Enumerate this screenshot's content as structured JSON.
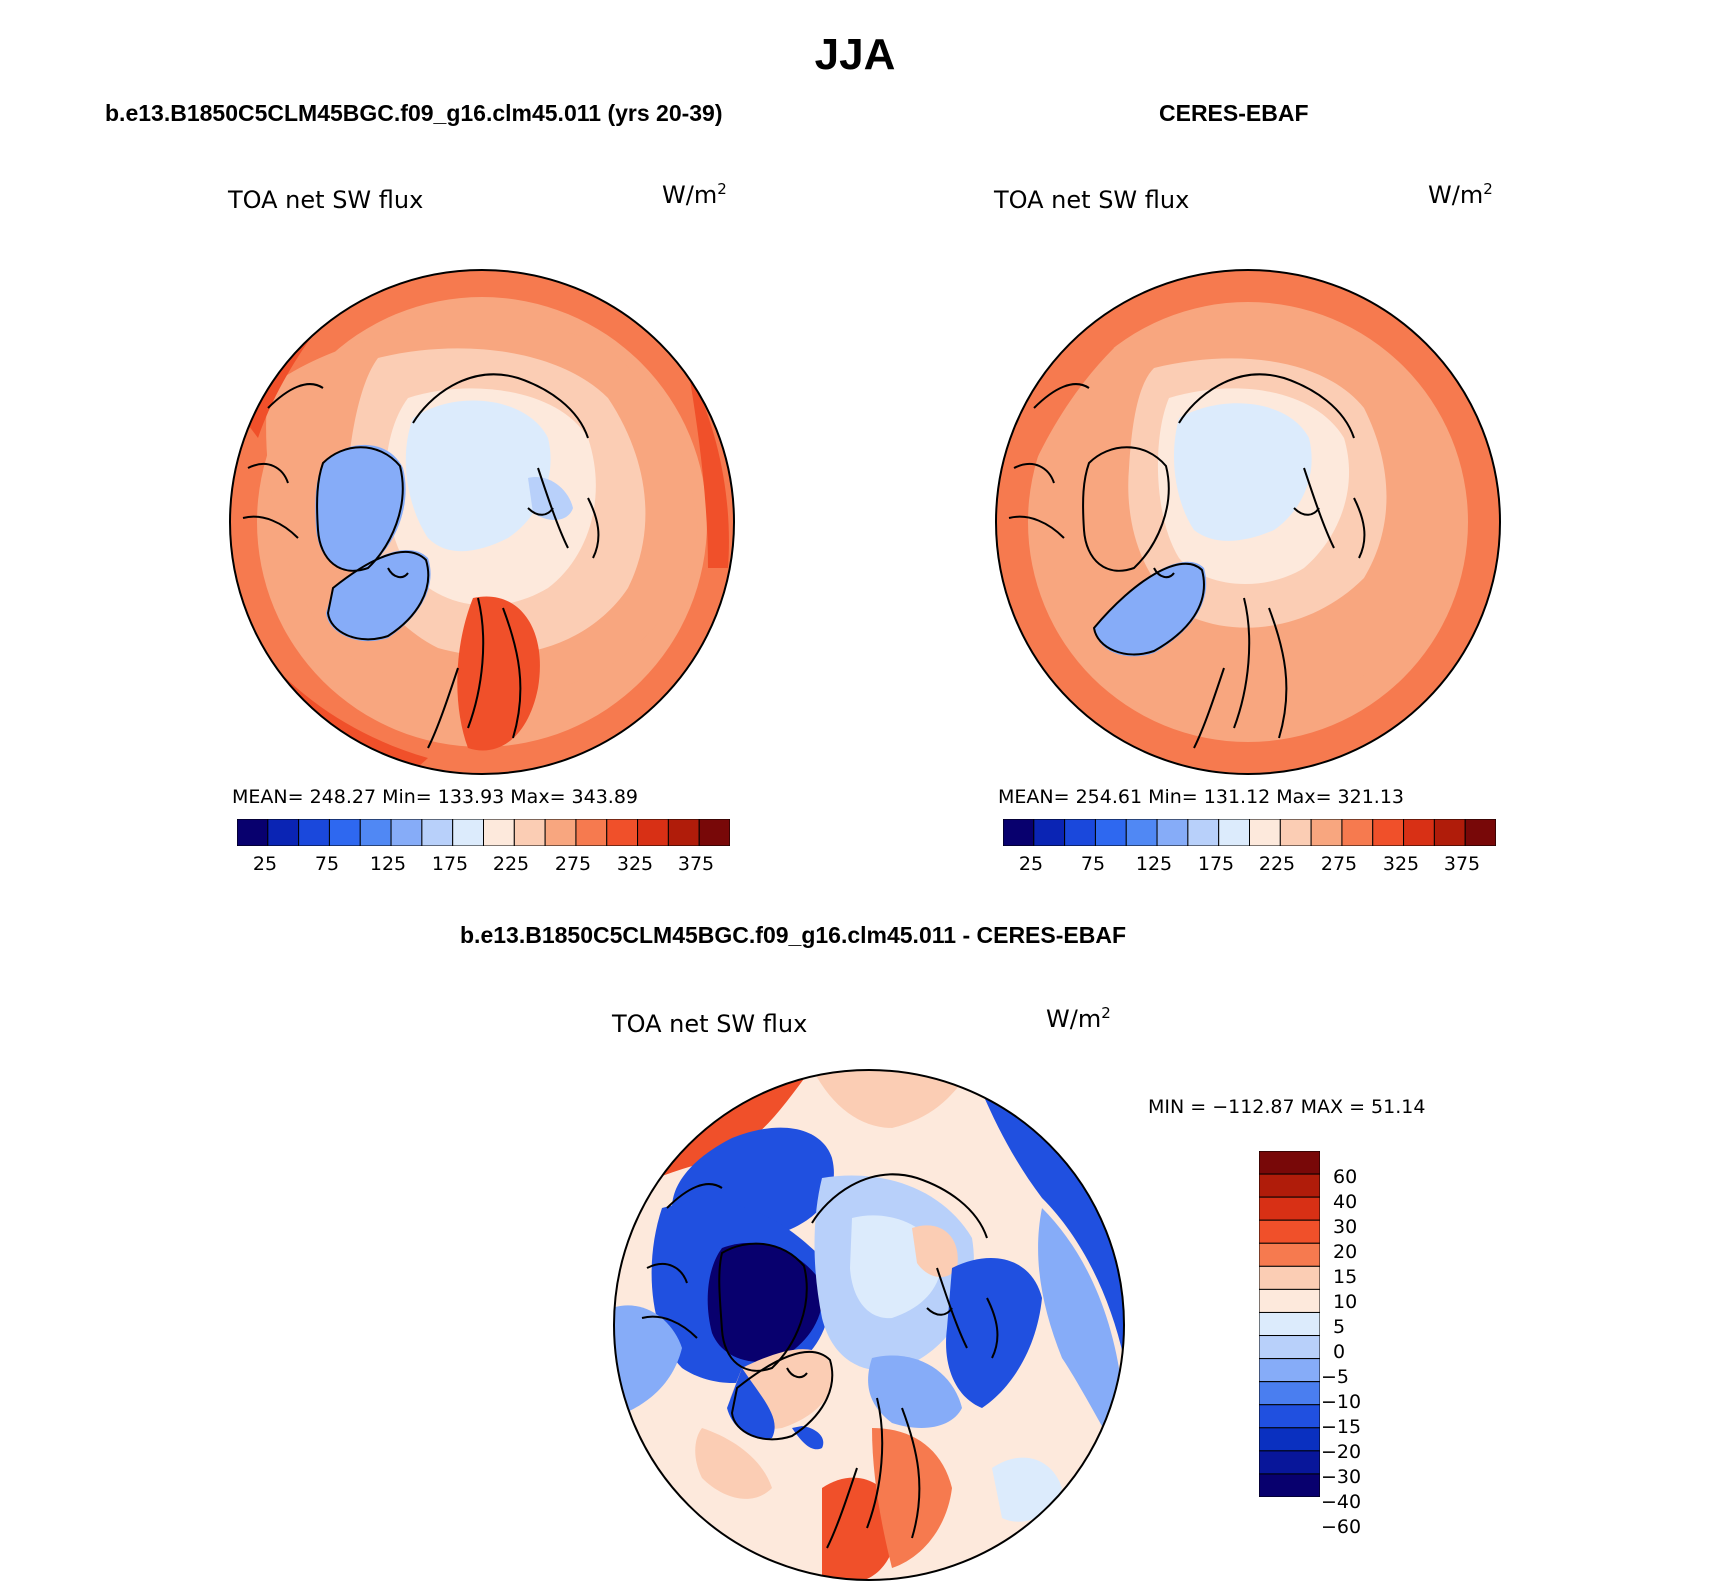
{
  "title": "JJA",
  "colors": {
    "abs_scale": [
      "#08006e",
      "#0a24b4",
      "#1a48dc",
      "#2e68f0",
      "#5088f4",
      "#86acf8",
      "#b8d0fa",
      "#dcebfc",
      "#fde9dc",
      "#fbcdb4",
      "#f8a67f",
      "#f67a4f",
      "#f0502a",
      "#d83015",
      "#b01c0a",
      "#780808"
    ],
    "diff_scale": [
      "#780808",
      "#b01c0a",
      "#d83015",
      "#f0502a",
      "#f67a4f",
      "#fbcdb4",
      "#fde9dc",
      "#dcebfc",
      "#b8d0fa",
      "#86acf8",
      "#4a7ef0",
      "#2050e0",
      "#0a30c0",
      "#08169a",
      "#08006e"
    ]
  },
  "panels": [
    {
      "id": "model",
      "title": "b.e13.B1850C5CLM45BGC.f09_g16.clm45.011 (yrs 20-39)",
      "variable": "TOA net SW flux",
      "units": "W/m",
      "units_sup": "2",
      "stats": "MEAN= 248.27   Min= 133.93   Max= 343.89",
      "colorbar_ticks": [
        "25",
        "75",
        "125",
        "175",
        "225",
        "275",
        "325",
        "375"
      ]
    },
    {
      "id": "obs",
      "title": "CERES-EBAF",
      "variable": "TOA net SW flux",
      "units": "W/m",
      "units_sup": "2",
      "stats": "MEAN= 254.61   Min= 131.12   Max= 321.13",
      "colorbar_ticks": [
        "25",
        "75",
        "125",
        "175",
        "225",
        "275",
        "325",
        "375"
      ]
    },
    {
      "id": "diff",
      "title": "b.e13.B1850C5CLM45BGC.f09_g16.clm45.011 - CERES-EBAF",
      "variable": "TOA net SW flux",
      "units": "W/m",
      "units_sup": "2",
      "stats": "MIN = −112.87 MAX =  51.14",
      "colorbar_ticks": [
        "60",
        "40",
        "30",
        "20",
        "15",
        "10",
        "5",
        "0",
        "−5",
        "−10",
        "−15",
        "−20",
        "−30",
        "−40",
        "−60"
      ]
    }
  ]
}
